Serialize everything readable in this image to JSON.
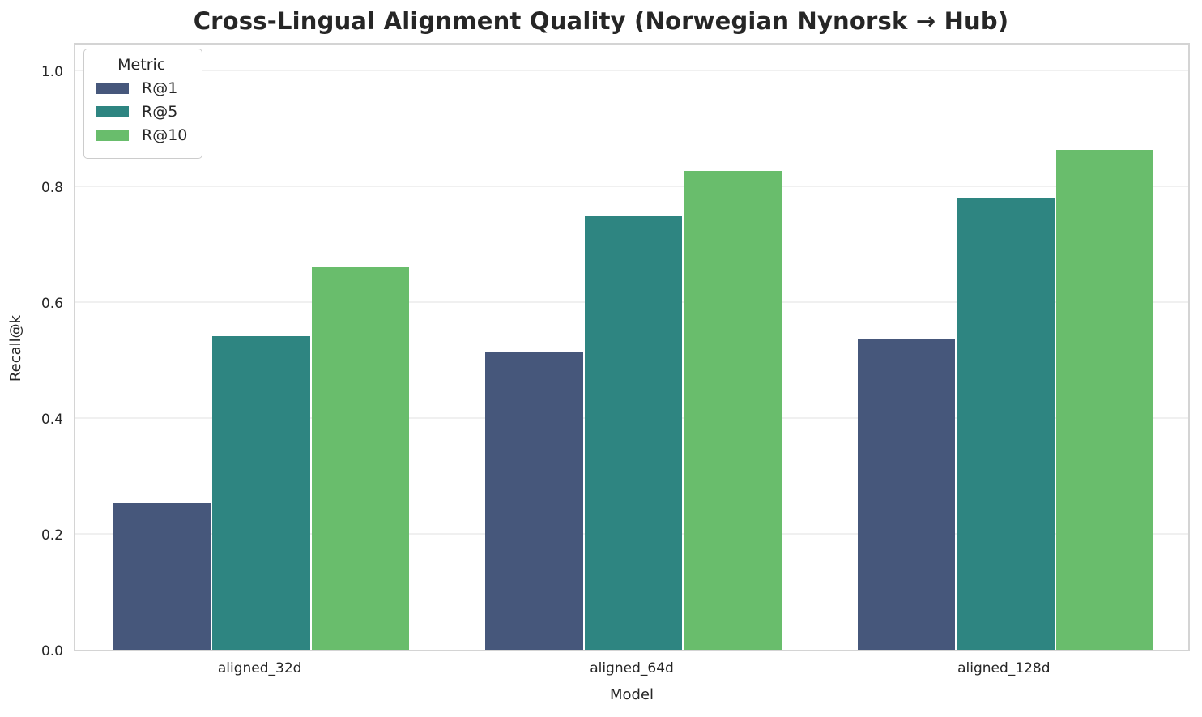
{
  "chart_data": {
    "type": "bar",
    "title": "Cross-Lingual Alignment Quality (Norwegian Nynorsk → Hub)",
    "xlabel": "Model",
    "ylabel": "Recall@k",
    "legend_title": "Metric",
    "legend_position": "upper left",
    "grid": true,
    "categories": [
      "aligned_32d",
      "aligned_64d",
      "aligned_128d"
    ],
    "series": [
      {
        "name": "R@1",
        "color": "#46577b",
        "values": [
          0.253,
          0.514,
          0.535
        ]
      },
      {
        "name": "R@5",
        "color": "#2e8581",
        "values": [
          0.541,
          0.75,
          0.78
        ]
      },
      {
        "name": "R@10",
        "color": "#69bd6c",
        "values": [
          0.661,
          0.827,
          0.863
        ]
      }
    ],
    "ylim": [
      0.0,
      1.0
    ],
    "yticks": [
      0.0,
      0.2,
      0.4,
      0.6,
      0.8,
      1.0
    ],
    "colors": {
      "grid": "#f0f0f0",
      "spine": "#d4d4d4",
      "text": "#262626",
      "background": "#ffffff"
    }
  }
}
